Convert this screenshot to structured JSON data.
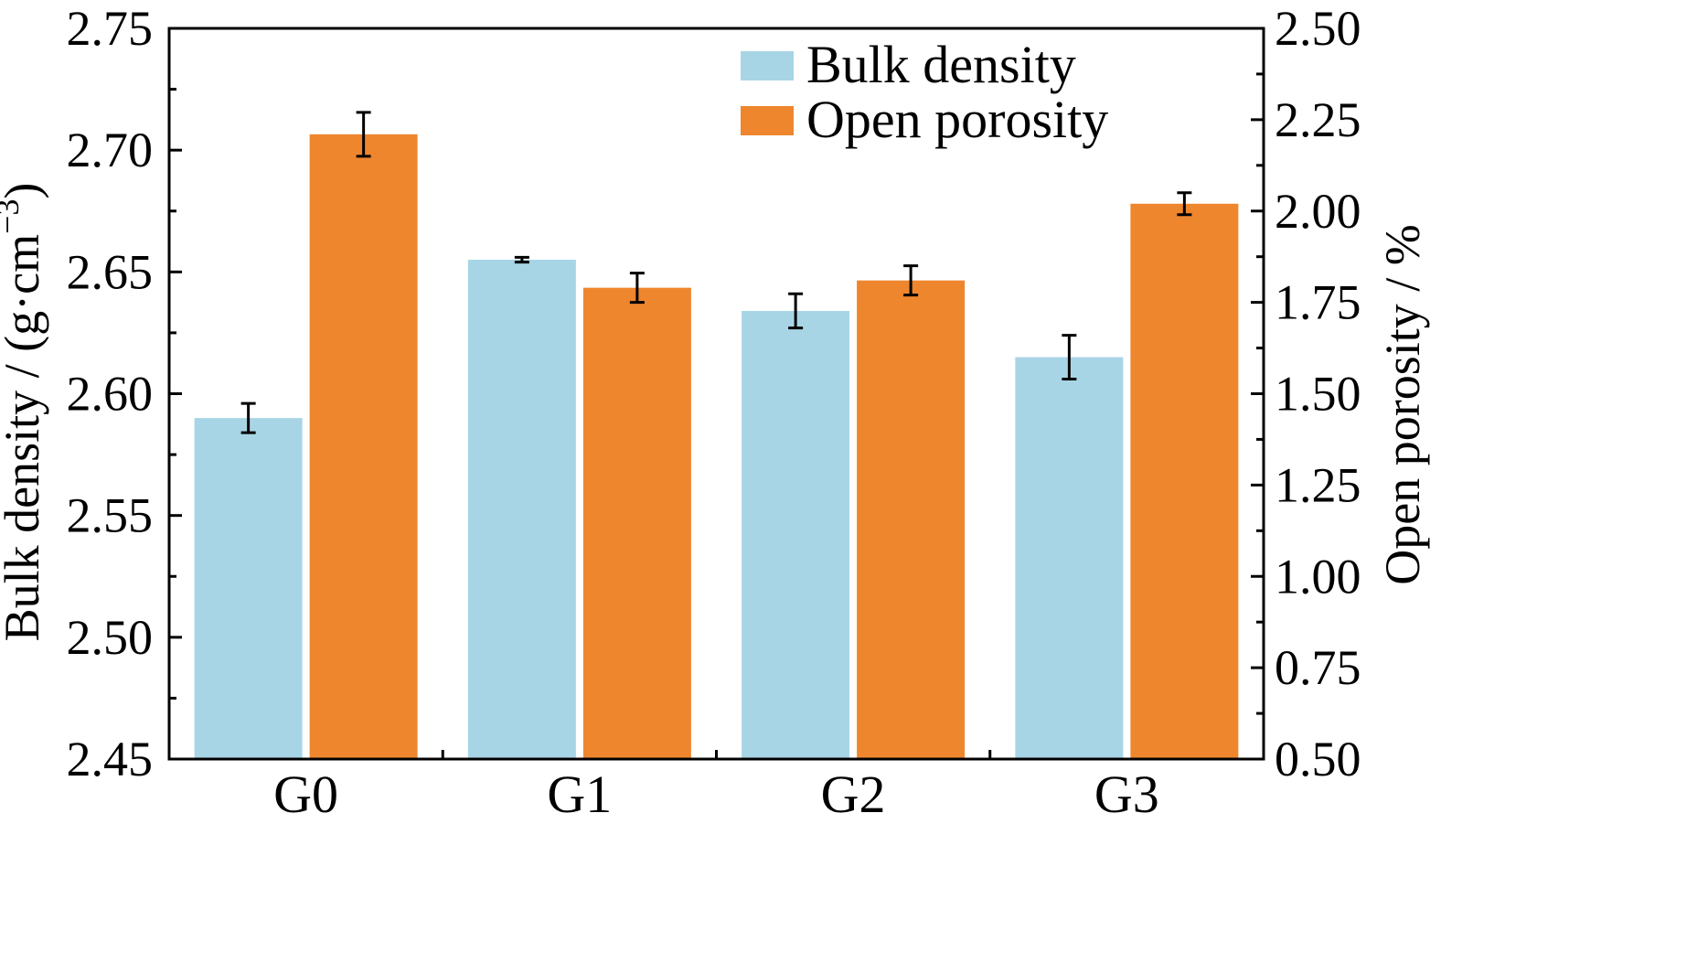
{
  "chart_data": {
    "type": "bar",
    "categories": [
      "G0",
      "G1",
      "G2",
      "G3"
    ],
    "series": [
      {
        "name": "Bulk density",
        "axis": "left",
        "color": "#a8d5e6",
        "values": [
          2.59,
          2.655,
          2.634,
          2.615
        ],
        "errors": [
          0.006,
          0.001,
          0.007,
          0.009
        ]
      },
      {
        "name": "Open porosity",
        "axis": "right",
        "color": "#ee862e",
        "values": [
          2.21,
          1.79,
          1.81,
          2.02
        ],
        "errors": [
          0.06,
          0.04,
          0.04,
          0.03
        ]
      }
    ],
    "y_left": {
      "label": "Bulk density / (g·cm⁻³)",
      "lim": [
        2.45,
        2.75
      ],
      "ticks": [
        "2.45",
        "2.50",
        "2.55",
        "2.60",
        "2.65",
        "2.70",
        "2.75"
      ]
    },
    "y_right": {
      "label": "Open porosity / %",
      "lim": [
        0.5,
        2.5
      ],
      "ticks": [
        "0.50",
        "0.75",
        "1.00",
        "1.25",
        "1.50",
        "1.75",
        "2.00",
        "2.25",
        "2.50"
      ]
    },
    "grid": false,
    "legend": "top-center"
  }
}
